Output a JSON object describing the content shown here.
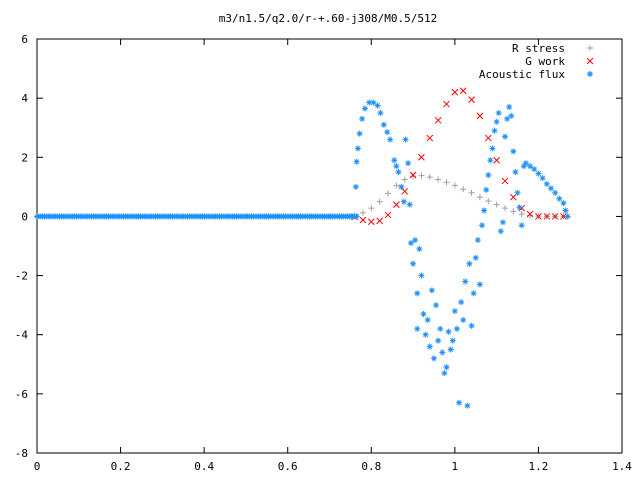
{
  "chart_data": {
    "type": "scatter",
    "title": "m3/n1.5/q2.0/r-+.60-j308/M0.5/512",
    "xlabel": "",
    "ylabel": "",
    "xlim": [
      0,
      1.4
    ],
    "ylim": [
      -8,
      6
    ],
    "x_ticks": [
      "0",
      "0.2",
      "0.4",
      "0.6",
      "0.8",
      "1",
      "1.2",
      "1.4"
    ],
    "y_ticks": [
      "6",
      "4",
      "2",
      "0",
      "-2",
      "-4",
      "-6",
      "-8"
    ],
    "grid": false,
    "legend_position": "top-right",
    "series": [
      {
        "name": "R stress",
        "marker": "+",
        "color": "#a0a0a0",
        "points": [
          [
            0.76,
            0.02
          ],
          [
            0.78,
            0.12
          ],
          [
            0.8,
            0.28
          ],
          [
            0.82,
            0.5
          ],
          [
            0.84,
            0.78
          ],
          [
            0.86,
            1.05
          ],
          [
            0.88,
            1.25
          ],
          [
            0.9,
            1.36
          ],
          [
            0.92,
            1.38
          ],
          [
            0.94,
            1.33
          ],
          [
            0.96,
            1.25
          ],
          [
            0.98,
            1.15
          ],
          [
            1.0,
            1.05
          ],
          [
            1.02,
            0.92
          ],
          [
            1.04,
            0.8
          ],
          [
            1.06,
            0.65
          ],
          [
            1.08,
            0.52
          ],
          [
            1.1,
            0.4
          ],
          [
            1.12,
            0.28
          ],
          [
            1.14,
            0.17
          ],
          [
            1.16,
            0.08
          ],
          [
            1.18,
            0.03
          ],
          [
            1.2,
            0.01
          ],
          [
            1.22,
            0.0
          ],
          [
            1.24,
            0.0
          ],
          [
            1.26,
            0.0
          ]
        ]
      },
      {
        "name": "G work",
        "marker": "x",
        "color": "#ff0000",
        "points": [
          [
            0.76,
            -0.02
          ],
          [
            0.78,
            -0.12
          ],
          [
            0.8,
            -0.18
          ],
          [
            0.82,
            -0.15
          ],
          [
            0.84,
            0.05
          ],
          [
            0.86,
            0.4
          ],
          [
            0.88,
            0.85
          ],
          [
            0.9,
            1.4
          ],
          [
            0.92,
            2.0
          ],
          [
            0.94,
            2.65
          ],
          [
            0.96,
            3.25
          ],
          [
            0.98,
            3.8
          ],
          [
            1.0,
            4.2
          ],
          [
            1.02,
            4.25
          ],
          [
            1.04,
            3.95
          ],
          [
            1.06,
            3.4
          ],
          [
            1.08,
            2.65
          ],
          [
            1.1,
            1.9
          ],
          [
            1.12,
            1.2
          ],
          [
            1.14,
            0.65
          ],
          [
            1.16,
            0.28
          ],
          [
            1.18,
            0.08
          ],
          [
            1.2,
            0.0
          ],
          [
            1.22,
            0.0
          ],
          [
            1.24,
            0.0
          ],
          [
            1.26,
            0.0
          ]
        ]
      },
      {
        "name": "Acoustic flux",
        "marker": "*",
        "color": "#1e90ff",
        "points": [
          [
            0.763,
            1.0
          ],
          [
            0.765,
            1.85
          ],
          [
            0.768,
            2.3
          ],
          [
            0.772,
            2.8
          ],
          [
            0.778,
            3.3
          ],
          [
            0.785,
            3.65
          ],
          [
            0.795,
            3.85
          ],
          [
            0.805,
            3.85
          ],
          [
            0.815,
            3.75
          ],
          [
            0.822,
            3.5
          ],
          [
            0.83,
            3.1
          ],
          [
            0.838,
            2.85
          ],
          [
            0.845,
            2.6
          ],
          [
            0.855,
            1.9
          ],
          [
            0.86,
            1.7
          ],
          [
            0.865,
            1.5
          ],
          [
            0.872,
            1.0
          ],
          [
            0.878,
            0.5
          ],
          [
            0.882,
            2.6
          ],
          [
            0.888,
            1.8
          ],
          [
            0.892,
            0.4
          ],
          [
            0.895,
            -0.9
          ],
          [
            0.9,
            -1.6
          ],
          [
            0.905,
            -0.8
          ],
          [
            0.91,
            -2.6
          ],
          [
            0.915,
            -1.1
          ],
          [
            0.92,
            -2.0
          ],
          [
            0.91,
            -3.8
          ],
          [
            0.925,
            -3.3
          ],
          [
            0.93,
            -4.0
          ],
          [
            0.935,
            -3.5
          ],
          [
            0.94,
            -4.4
          ],
          [
            0.945,
            -2.5
          ],
          [
            0.95,
            -4.8
          ],
          [
            0.955,
            -3.0
          ],
          [
            0.96,
            -4.2
          ],
          [
            0.965,
            -3.8
          ],
          [
            0.97,
            -4.6
          ],
          [
            0.975,
            -5.3
          ],
          [
            0.98,
            -5.1
          ],
          [
            0.985,
            -3.9
          ],
          [
            0.99,
            -4.5
          ],
          [
            0.995,
            -4.2
          ],
          [
            1.0,
            -3.2
          ],
          [
            1.005,
            -3.8
          ],
          [
            1.01,
            -6.3
          ],
          [
            1.015,
            -2.9
          ],
          [
            1.02,
            -3.5
          ],
          [
            1.025,
            -2.2
          ],
          [
            1.03,
            -6.4
          ],
          [
            1.035,
            -1.6
          ],
          [
            1.04,
            -3.7
          ],
          [
            1.045,
            -2.6
          ],
          [
            1.05,
            -1.4
          ],
          [
            1.055,
            -0.8
          ],
          [
            1.06,
            -2.3
          ],
          [
            1.065,
            -0.3
          ],
          [
            1.07,
            0.2
          ],
          [
            1.075,
            0.9
          ],
          [
            1.08,
            1.4
          ],
          [
            1.085,
            1.9
          ],
          [
            1.09,
            2.3
          ],
          [
            1.095,
            2.9
          ],
          [
            1.1,
            3.2
          ],
          [
            1.105,
            3.5
          ],
          [
            1.11,
            -0.5
          ],
          [
            1.115,
            -0.2
          ],
          [
            1.12,
            2.7
          ],
          [
            1.125,
            3.3
          ],
          [
            1.13,
            3.7
          ],
          [
            1.135,
            3.4
          ],
          [
            1.14,
            2.2
          ],
          [
            1.145,
            1.5
          ],
          [
            1.15,
            0.8
          ],
          [
            1.155,
            0.3
          ],
          [
            1.16,
            -0.3
          ],
          [
            1.165,
            1.7
          ],
          [
            1.17,
            1.8
          ],
          [
            1.18,
            1.7
          ],
          [
            1.19,
            1.6
          ],
          [
            1.2,
            1.45
          ],
          [
            1.21,
            1.3
          ],
          [
            1.22,
            1.1
          ],
          [
            1.23,
            0.95
          ],
          [
            1.24,
            0.8
          ],
          [
            1.25,
            0.6
          ],
          [
            1.26,
            0.45
          ],
          [
            1.265,
            0.2
          ],
          [
            1.27,
            0.0
          ]
        ]
      }
    ]
  }
}
